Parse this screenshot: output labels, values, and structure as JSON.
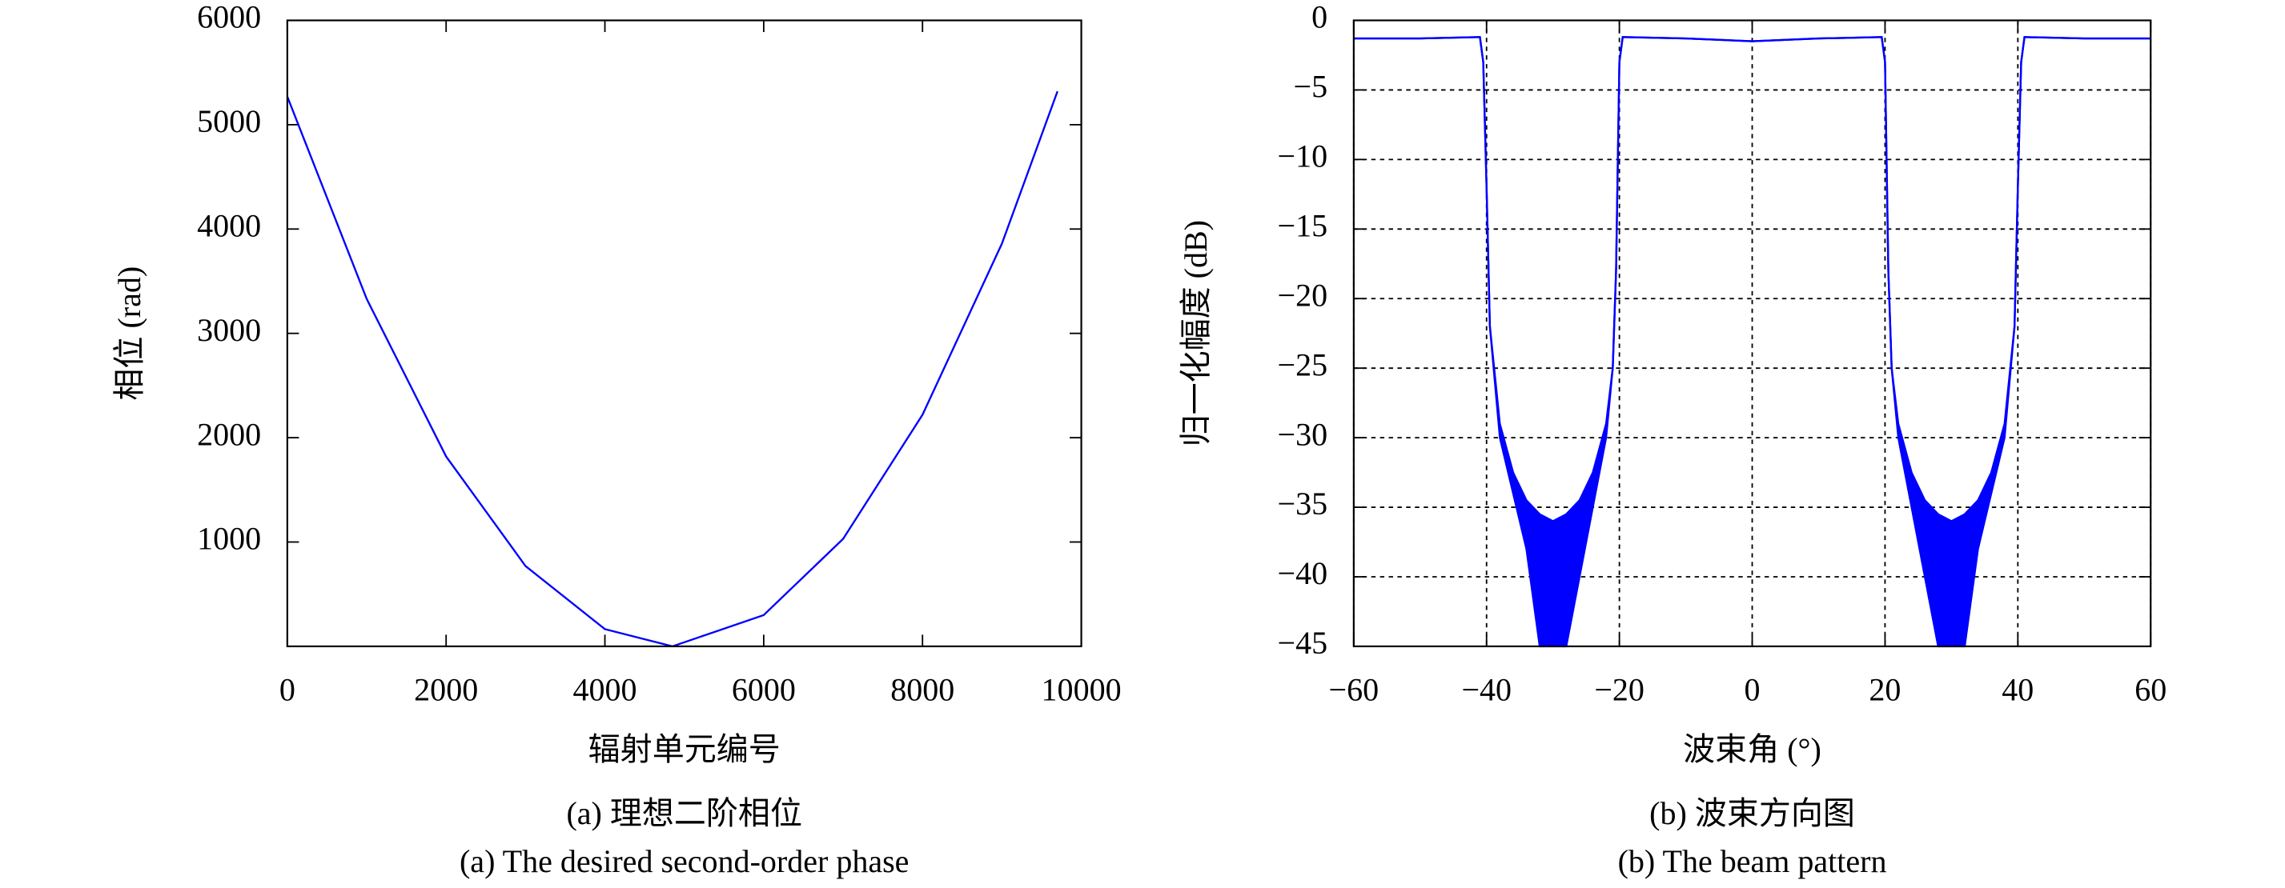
{
  "chart_data": [
    {
      "type": "line",
      "caption_cn": "(a) 理想二阶相位",
      "caption_en": "(a) The desired second-order phase",
      "x_label": "辐射单元编号",
      "y_label": "相位 (rad)",
      "x": [
        0,
        1000,
        2000,
        3000,
        4000,
        4850,
        6000,
        7000,
        8000,
        9000,
        9700
      ],
      "series": [
        {
          "color": "#0000ff",
          "values": [
            5270,
            3330,
            1820,
            770,
            165,
            0,
            300,
            1030,
            2220,
            3860,
            5320
          ]
        }
      ],
      "xlim": [
        0,
        10000
      ],
      "ylim": [
        0,
        6000
      ],
      "xticks": [
        0,
        2000,
        4000,
        6000,
        8000,
        10000
      ],
      "yticks": [
        1000,
        2000,
        3000,
        4000,
        5000,
        6000
      ],
      "grid": false
    },
    {
      "type": "band",
      "caption_cn": "(b) 波束方向图",
      "caption_en": "(b) The beam pattern",
      "x_label": "波束角 (°)",
      "y_label": "归一化幅度 (dB)",
      "x": [
        -60,
        -50,
        -41,
        -40.5,
        -40,
        -39.5,
        -38,
        -36,
        -34,
        -32,
        -30,
        -28,
        -26,
        -24,
        -22,
        -21,
        -20.5,
        -20,
        -19.5,
        -10,
        0,
        10,
        19.5,
        20,
        20.5,
        21,
        22,
        24,
        26,
        28,
        30,
        32,
        34,
        36,
        38,
        39.5,
        40,
        40.5,
        41,
        50,
        60
      ],
      "series": [
        {
          "color": "#0000ff",
          "values": [
            -1.3,
            -1.3,
            -1.2,
            -3,
            -12,
            -22,
            -29,
            -32.5,
            -34.5,
            -35.5,
            -36,
            -35.5,
            -34.5,
            -32.5,
            -29,
            -25,
            -18,
            -3,
            -1.2,
            -1.3,
            -1.5,
            -1.3,
            -1.2,
            -3,
            -18,
            -25,
            -29,
            -32.5,
            -34.5,
            -35.5,
            -36,
            -35.5,
            -34.5,
            -32.5,
            -29,
            -22,
            -12,
            -3,
            -1.2,
            -1.3,
            -1.3
          ]
        },
        {
          "color": "#0000ff",
          "values": [
            -1.3,
            -1.3,
            -1.2,
            -3,
            -12,
            -22,
            -30,
            -34,
            -38,
            -45,
            -45,
            -45,
            -40,
            -35,
            -30,
            -25,
            -18,
            -3,
            -1.2,
            -1.3,
            -1.5,
            -1.3,
            -1.2,
            -3,
            -18,
            -25,
            -30,
            -35,
            -40,
            -45,
            -45,
            -45,
            -38,
            -34,
            -30,
            -22,
            -12,
            -3,
            -1.2,
            -1.3,
            -1.3
          ]
        }
      ],
      "xlim": [
        -60,
        60
      ],
      "ylim": [
        -45,
        0
      ],
      "xticks": [
        {
          "value": -60,
          "label": "−60"
        },
        {
          "value": -40,
          "label": "−40"
        },
        {
          "value": -20,
          "label": "−20"
        },
        0,
        20,
        40,
        60
      ],
      "yticks": [
        0,
        {
          "value": -5,
          "label": "−5"
        },
        {
          "value": -10,
          "label": "−10"
        },
        {
          "value": -15,
          "label": "−15"
        },
        {
          "value": -20,
          "label": "−20"
        },
        {
          "value": -25,
          "label": "−25"
        },
        {
          "value": -30,
          "label": "−30"
        },
        {
          "value": -35,
          "label": "−35"
        },
        {
          "value": -40,
          "label": "−40"
        },
        {
          "value": -45,
          "label": "−45"
        }
      ],
      "grid": true
    }
  ]
}
